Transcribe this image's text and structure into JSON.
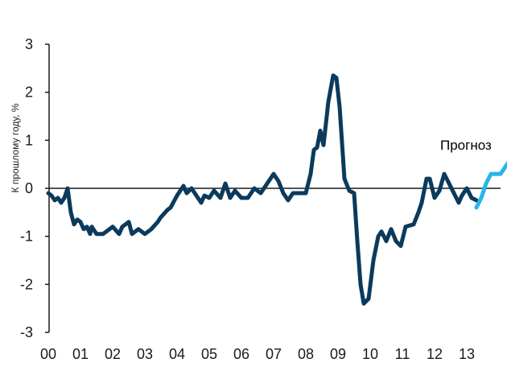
{
  "chart_data": {
    "type": "line",
    "title": "",
    "xlabel": "",
    "ylabel": "К прошлому году, %",
    "annotation": "Прогноз",
    "ylim": [
      -3,
      3
    ],
    "xlim": [
      2000,
      2014
    ],
    "grid": false,
    "yticks": [
      "3",
      "2",
      "1",
      "0",
      "-1",
      "-2",
      "-3"
    ],
    "yticks_values": [
      3,
      2,
      1,
      0,
      -1,
      -2,
      -3
    ],
    "xticks": [
      "00",
      "01",
      "02",
      "03",
      "04",
      "05",
      "06",
      "07",
      "08",
      "09",
      "10",
      "11",
      "12",
      "13"
    ],
    "colors": {
      "actual": "#0b3a5c",
      "forecast": "#29b5e8",
      "axis": "#1a1a1a"
    },
    "series": [
      {
        "role": "actual",
        "points": [
          [
            2000.0,
            -0.1
          ],
          [
            2000.1,
            -0.15
          ],
          [
            2000.2,
            -0.25
          ],
          [
            2000.3,
            -0.2
          ],
          [
            2000.4,
            -0.3
          ],
          [
            2000.5,
            -0.2
          ],
          [
            2000.6,
            0.0
          ],
          [
            2000.7,
            -0.5
          ],
          [
            2000.8,
            -0.75
          ],
          [
            2000.9,
            -0.65
          ],
          [
            2001.0,
            -0.7
          ],
          [
            2001.1,
            -0.85
          ],
          [
            2001.2,
            -0.8
          ],
          [
            2001.3,
            -0.95
          ],
          [
            2001.35,
            -0.8
          ],
          [
            2001.5,
            -0.95
          ],
          [
            2001.7,
            -0.95
          ],
          [
            2001.9,
            -0.85
          ],
          [
            2002.0,
            -0.8
          ],
          [
            2002.2,
            -0.95
          ],
          [
            2002.3,
            -0.8
          ],
          [
            2002.5,
            -0.7
          ],
          [
            2002.6,
            -0.95
          ],
          [
            2002.8,
            -0.85
          ],
          [
            2003.0,
            -0.95
          ],
          [
            2003.2,
            -0.85
          ],
          [
            2003.4,
            -0.7
          ],
          [
            2003.5,
            -0.6
          ],
          [
            2003.7,
            -0.45
          ],
          [
            2003.8,
            -0.4
          ],
          [
            2004.0,
            -0.15
          ],
          [
            2004.2,
            0.05
          ],
          [
            2004.3,
            -0.1
          ],
          [
            2004.45,
            0.0
          ],
          [
            2004.6,
            -0.15
          ],
          [
            2004.75,
            -0.3
          ],
          [
            2004.85,
            -0.15
          ],
          [
            2005.0,
            -0.2
          ],
          [
            2005.15,
            -0.05
          ],
          [
            2005.35,
            -0.2
          ],
          [
            2005.5,
            0.1
          ],
          [
            2005.65,
            -0.2
          ],
          [
            2005.8,
            -0.05
          ],
          [
            2006.0,
            -0.2
          ],
          [
            2006.2,
            -0.2
          ],
          [
            2006.4,
            0.0
          ],
          [
            2006.6,
            -0.1
          ],
          [
            2006.8,
            0.1
          ],
          [
            2007.0,
            0.3
          ],
          [
            2007.15,
            0.15
          ],
          [
            2007.3,
            -0.1
          ],
          [
            2007.45,
            -0.25
          ],
          [
            2007.6,
            -0.1
          ],
          [
            2007.8,
            -0.1
          ],
          [
            2008.0,
            -0.1
          ],
          [
            2008.15,
            0.3
          ],
          [
            2008.25,
            0.8
          ],
          [
            2008.35,
            0.85
          ],
          [
            2008.45,
            1.2
          ],
          [
            2008.55,
            0.9
          ],
          [
            2008.7,
            1.8
          ],
          [
            2008.85,
            2.35
          ],
          [
            2008.95,
            2.3
          ],
          [
            2009.05,
            1.7
          ],
          [
            2009.2,
            0.2
          ],
          [
            2009.35,
            -0.05
          ],
          [
            2009.5,
            -0.1
          ],
          [
            2009.6,
            -1.1
          ],
          [
            2009.7,
            -2.0
          ],
          [
            2009.8,
            -2.4
          ],
          [
            2009.95,
            -2.3
          ],
          [
            2010.1,
            -1.5
          ],
          [
            2010.25,
            -1.0
          ],
          [
            2010.35,
            -0.9
          ],
          [
            2010.5,
            -1.1
          ],
          [
            2010.65,
            -0.85
          ],
          [
            2010.8,
            -1.1
          ],
          [
            2010.95,
            -1.2
          ],
          [
            2011.1,
            -0.8
          ],
          [
            2011.35,
            -0.75
          ],
          [
            2011.5,
            -0.5
          ],
          [
            2011.6,
            -0.3
          ],
          [
            2011.75,
            0.2
          ],
          [
            2011.85,
            0.2
          ],
          [
            2012.0,
            -0.2
          ],
          [
            2012.15,
            -0.05
          ],
          [
            2012.3,
            0.3
          ],
          [
            2012.45,
            0.1
          ],
          [
            2012.6,
            -0.1
          ],
          [
            2012.75,
            -0.3
          ],
          [
            2012.85,
            -0.15
          ],
          [
            2013.0,
            0.0
          ],
          [
            2013.15,
            -0.2
          ],
          [
            2013.3,
            -0.25
          ]
        ]
      },
      {
        "role": "forecast",
        "points": [
          [
            2013.3,
            -0.4
          ],
          [
            2013.45,
            -0.2
          ],
          [
            2013.6,
            0.1
          ],
          [
            2013.75,
            0.3
          ],
          [
            2013.9,
            0.3
          ],
          [
            2014.05,
            0.3
          ],
          [
            2014.2,
            0.45
          ],
          [
            2014.35,
            0.6
          ]
        ]
      }
    ]
  }
}
